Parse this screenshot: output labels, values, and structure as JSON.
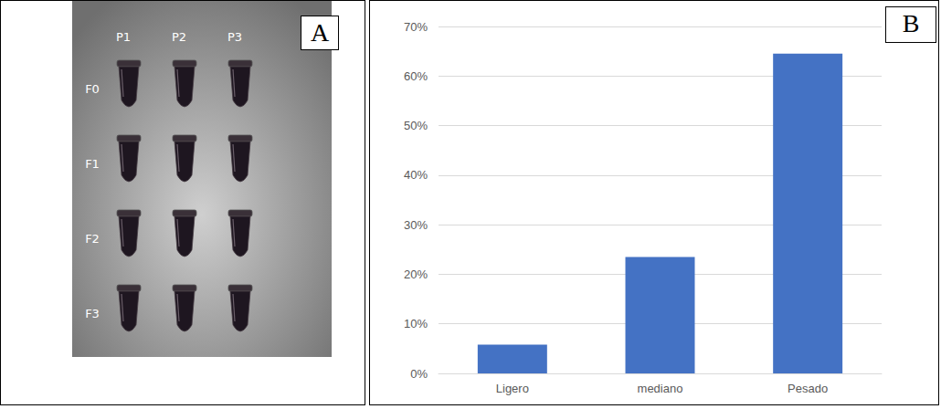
{
  "photo_panel": {
    "letter": "A",
    "columns": [
      "P1",
      "P2",
      "P3"
    ],
    "rows": [
      "F0",
      "F1",
      "F2",
      "F3"
    ]
  },
  "chart_data": {
    "type": "bar",
    "annotations": [
      "B"
    ],
    "categories": [
      "Ligero",
      "mediano",
      "Pesado"
    ],
    "values": [
      5.8,
      23.5,
      64.5
    ],
    "color": "#4472c4",
    "ylim": [
      0,
      70
    ],
    "yticks": [
      {
        "value": 0,
        "label": "0%"
      },
      {
        "value": 10,
        "label": "10%"
      },
      {
        "value": 20,
        "label": "20%"
      },
      {
        "value": 30,
        "label": "30%"
      },
      {
        "value": 40,
        "label": "40%"
      },
      {
        "value": 50,
        "label": "50%"
      },
      {
        "value": 60,
        "label": "60%"
      },
      {
        "value": 70,
        "label": "70%"
      }
    ],
    "grid": true
  }
}
